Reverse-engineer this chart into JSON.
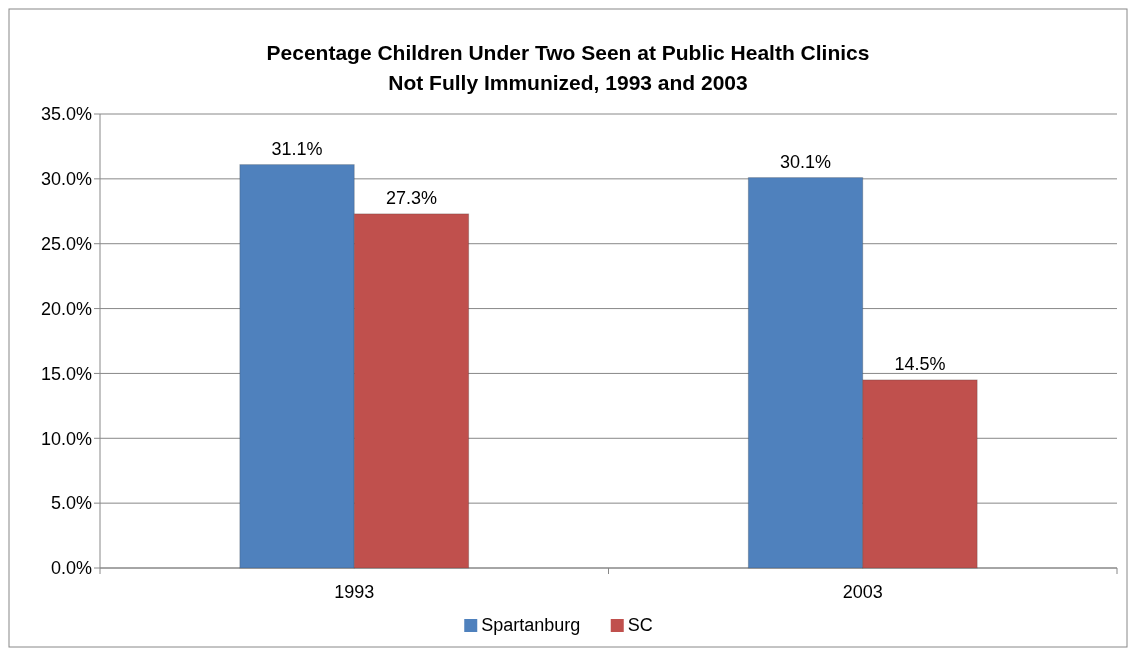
{
  "chart_data": {
    "type": "bar",
    "title": "Pecentage Children Under Two Seen at Public Health Clinics\nNot Fully Immunized, 1993 and 2003",
    "categories": [
      "1993",
      "2003"
    ],
    "series": [
      {
        "name": "Spartanburg",
        "color": "#4f81bd",
        "values": [
          31.1,
          30.1
        ],
        "value_labels": [
          "31.1%",
          "30.1%"
        ]
      },
      {
        "name": "SC",
        "color": "#c0504d",
        "values": [
          27.3,
          14.5
        ],
        "value_labels": [
          "27.3%",
          "14.5%"
        ]
      }
    ],
    "ylim": [
      0,
      35
    ],
    "yticks": [
      {
        "value": 0,
        "label": "0.0%"
      },
      {
        "value": 5,
        "label": "5.0%"
      },
      {
        "value": 10,
        "label": "10.0%"
      },
      {
        "value": 15,
        "label": "15.0%"
      },
      {
        "value": 20,
        "label": "20.0%"
      },
      {
        "value": 25,
        "label": "25.0%"
      },
      {
        "value": 30,
        "label": "30.0%"
      },
      {
        "value": 35,
        "label": "35.0%"
      }
    ],
    "grid": "y",
    "legend": "bottom"
  }
}
